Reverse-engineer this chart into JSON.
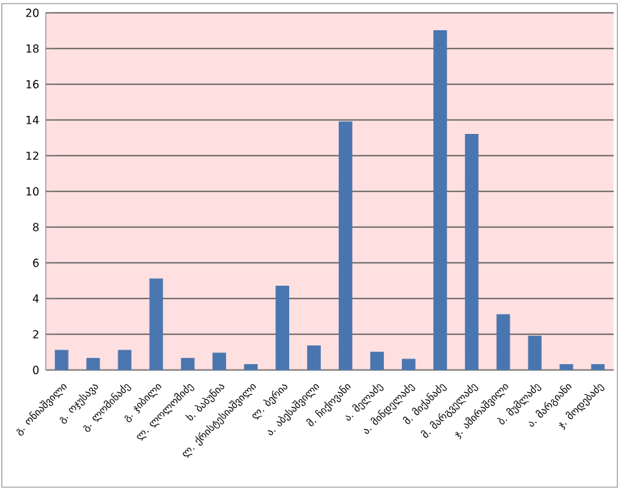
{
  "chart_data": {
    "type": "bar",
    "categories": [
      "გ. ონიაშვილი",
      "გ. ოჯუსავა",
      "გ. ლომინაძე",
      "გ. ჯიბილი",
      "ლ. ლოლომიძე",
      "ხ. ბაბუნია",
      "ლ. ქრისტესიაშვილი",
      "ლ. ბერია",
      "ა. აბესაშვილი",
      "მ. ჩიქოვანი",
      "ა. მელაძე",
      "ა. მინდელაძე",
      "მ. მიქანაძე",
      "მ. მარგველაძე",
      "ჯ. ამირაშვილი",
      "ბ. მუმლაძე",
      "ა. მარგიანი",
      "ჯ. მოდებაძე"
    ],
    "values": [
      1.1,
      0.65,
      1.1,
      5.1,
      0.65,
      0.95,
      0.3,
      4.7,
      1.35,
      13.9,
      1.0,
      0.6,
      19,
      13.2,
      3.1,
      1.9,
      0.3,
      0.3
    ],
    "color": "#4a76b0",
    "ylim": [
      0,
      20
    ],
    "yticks": [
      0,
      2,
      4,
      6,
      8,
      10,
      12,
      14,
      16,
      18,
      20
    ],
    "grid": "y"
  }
}
